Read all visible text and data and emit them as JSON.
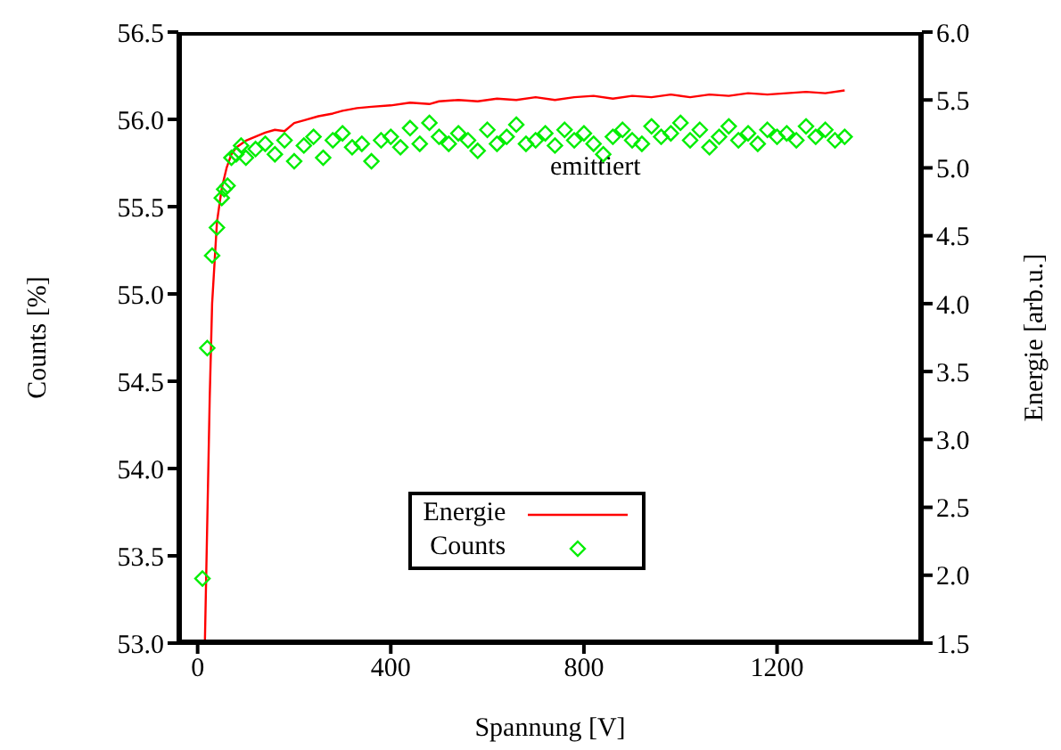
{
  "chart_data": {
    "type": "line",
    "xlabel": "Spannung [V]",
    "ylabel": "Counts [%]",
    "y2label": "Energie [arb.u.]",
    "xlim": [
      -40,
      1500
    ],
    "xticks": [
      0,
      400,
      800,
      1200
    ],
    "ylim": [
      53.0,
      56.5
    ],
    "yticks": [
      {
        "value": 53,
        "label": "53.0"
      },
      53.5,
      {
        "value": 54,
        "label": "54.0"
      },
      54.5,
      {
        "value": 55,
        "label": "55.0"
      },
      55.5,
      {
        "value": 56,
        "label": "56.0"
      },
      56.5
    ],
    "y2lim": [
      1.5,
      6.0
    ],
    "y2ticks": [
      1.5,
      {
        "value": 2,
        "label": "2.0"
      },
      2.5,
      {
        "value": 3,
        "label": "3.0"
      },
      3.5,
      {
        "value": 4,
        "label": "4.0"
      },
      4.5,
      {
        "value": 5,
        "label": "5.0"
      },
      5.5,
      {
        "value": 6,
        "label": "6.0"
      }
    ],
    "legend": "bottom",
    "grid": false,
    "annotations": [
      "emittiert"
    ],
    "series": [
      {
        "name": "Energie",
        "axis": "y2",
        "color": "#ff0000",
        "marker": "none",
        "line_style": "solid",
        "x": [
          15,
          20,
          25,
          30,
          40,
          50,
          60,
          70,
          80,
          100,
          120,
          140,
          160,
          180,
          200,
          220,
          250,
          280,
          300,
          330,
          360,
          400,
          440,
          480,
          500,
          540,
          580,
          620,
          660,
          700,
          740,
          780,
          820,
          860,
          900,
          940,
          980,
          1020,
          1060,
          1100,
          1140,
          1180,
          1220,
          1260,
          1300,
          1340
        ],
        "values": [
          1.5,
          2.4,
          3.3,
          4.0,
          4.6,
          4.85,
          5.0,
          5.1,
          5.15,
          5.2,
          5.23,
          5.26,
          5.28,
          5.27,
          5.33,
          5.35,
          5.38,
          5.4,
          5.42,
          5.44,
          5.45,
          5.46,
          5.48,
          5.47,
          5.49,
          5.5,
          5.49,
          5.51,
          5.5,
          5.52,
          5.5,
          5.52,
          5.53,
          5.51,
          5.53,
          5.52,
          5.54,
          5.52,
          5.54,
          5.53,
          5.55,
          5.54,
          5.55,
          5.56,
          5.55,
          5.57
        ]
      },
      {
        "name": "Counts",
        "type": "scatter",
        "color": "#00ee00",
        "marker": "diamond",
        "x": [
          10,
          20,
          30,
          40,
          50,
          55,
          62,
          70,
          80,
          90,
          100,
          120,
          140,
          160,
          180,
          200,
          220,
          240,
          260,
          280,
          300,
          320,
          340,
          360,
          380,
          400,
          420,
          440,
          460,
          480,
          500,
          520,
          540,
          560,
          580,
          600,
          620,
          640,
          660,
          680,
          700,
          720,
          740,
          760,
          780,
          800,
          820,
          840,
          860,
          880,
          900,
          920,
          940,
          960,
          980,
          1000,
          1020,
          1040,
          1060,
          1080,
          1100,
          1120,
          1140,
          1160,
          1180,
          1200,
          1220,
          1240,
          1260,
          1280,
          1300,
          1320,
          1340
        ],
        "values": [
          53.37,
          54.69,
          55.22,
          55.38,
          55.55,
          55.6,
          55.62,
          55.78,
          55.8,
          55.85,
          55.78,
          55.83,
          55.86,
          55.8,
          55.88,
          55.76,
          55.85,
          55.9,
          55.78,
          55.88,
          55.92,
          55.84,
          55.86,
          55.76,
          55.88,
          55.9,
          55.84,
          55.95,
          55.86,
          55.98,
          55.9,
          55.86,
          55.92,
          55.88,
          55.82,
          55.94,
          55.86,
          55.9,
          55.97,
          55.86,
          55.88,
          55.92,
          55.85,
          55.94,
          55.88,
          55.92,
          55.86,
          55.8,
          55.9,
          55.94,
          55.88,
          55.86,
          55.96,
          55.9,
          55.92,
          55.98,
          55.88,
          55.94,
          55.84,
          55.9,
          55.96,
          55.88,
          55.92,
          55.86,
          55.94,
          55.9,
          55.92,
          55.88,
          55.96,
          55.9,
          55.94,
          55.88,
          55.9
        ]
      }
    ]
  }
}
